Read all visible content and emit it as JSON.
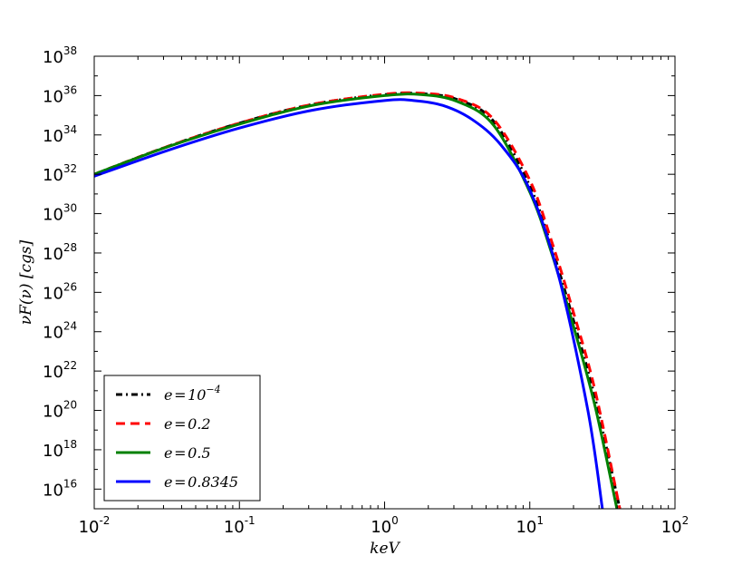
{
  "chart_data": {
    "type": "line",
    "title": "",
    "xlabel": "keV",
    "ylabel": "νF(ν) [cgs]",
    "x_scale": "log",
    "y_scale": "log",
    "xlim": [
      0.01,
      100
    ],
    "ylim": [
      1000000000000000.0,
      1e+38
    ],
    "x_ticks": [
      {
        "base": "10",
        "exp": "-2"
      },
      {
        "base": "10",
        "exp": "-1"
      },
      {
        "base": "10",
        "exp": "0"
      },
      {
        "base": "10",
        "exp": "1"
      },
      {
        "base": "10",
        "exp": "2"
      }
    ],
    "y_ticks": [
      {
        "base": "10",
        "exp": "16"
      },
      {
        "base": "10",
        "exp": "18"
      },
      {
        "base": "10",
        "exp": "20"
      },
      {
        "base": "10",
        "exp": "22"
      },
      {
        "base": "10",
        "exp": "24"
      },
      {
        "base": "10",
        "exp": "26"
      },
      {
        "base": "10",
        "exp": "28"
      },
      {
        "base": "10",
        "exp": "30"
      },
      {
        "base": "10",
        "exp": "32"
      },
      {
        "base": "10",
        "exp": "34"
      },
      {
        "base": "10",
        "exp": "36"
      },
      {
        "base": "10",
        "exp": "38"
      }
    ],
    "grid": false,
    "legend_position": "lower-left",
    "series": [
      {
        "name": "e = 10^-4",
        "legend_base": "e = 10",
        "legend_exp": "−4",
        "color": "#000000",
        "style": "dashdot",
        "x_log10": [
          -2,
          -1.5,
          -1,
          -0.5,
          0,
          0.25,
          0.5,
          0.75,
          1,
          1.15,
          1.3,
          1.45,
          1.62
        ],
        "y_log10": [
          32.0,
          33.4,
          34.6,
          35.55,
          36.05,
          36.1,
          35.8,
          34.7,
          31.4,
          28.3,
          24.6,
          20.6,
          15.0
        ]
      },
      {
        "name": "e = 0.2",
        "legend_base": "e = 0.2",
        "legend_exp": "",
        "color": "#ff0000",
        "style": "dashed",
        "x_log10": [
          -2,
          -1.5,
          -1,
          -0.5,
          0,
          0.25,
          0.5,
          0.75,
          1,
          1.15,
          1.3,
          1.45,
          1.62
        ],
        "y_log10": [
          32.0,
          33.4,
          34.6,
          35.55,
          36.07,
          36.12,
          35.85,
          34.8,
          31.7,
          28.6,
          25.0,
          21.0,
          15.0
        ]
      },
      {
        "name": "e = 0.5",
        "legend_base": "e = 0.5",
        "legend_exp": "",
        "color": "#008000",
        "style": "solid",
        "x_log10": [
          -2,
          -1.5,
          -1,
          -0.5,
          0,
          0.25,
          0.5,
          0.75,
          1,
          1.15,
          1.3,
          1.45,
          1.6
        ],
        "y_log10": [
          32.0,
          33.38,
          34.55,
          35.5,
          36.0,
          36.05,
          35.7,
          34.5,
          31.1,
          28.0,
          24.3,
          20.2,
          15.0
        ]
      },
      {
        "name": "e = 0.8345",
        "legend_base": "e = 0.8345",
        "legend_exp": "",
        "color": "#0000ff",
        "style": "solid",
        "x_log10": [
          -2,
          -1.5,
          -1,
          -0.5,
          0,
          0.2,
          0.4,
          0.6,
          0.8,
          1,
          1.2,
          1.4,
          1.5
        ],
        "y_log10": [
          31.9,
          33.2,
          34.35,
          35.25,
          35.75,
          35.75,
          35.5,
          34.8,
          33.5,
          31.2,
          26.8,
          20.0,
          15.0
        ]
      }
    ]
  }
}
